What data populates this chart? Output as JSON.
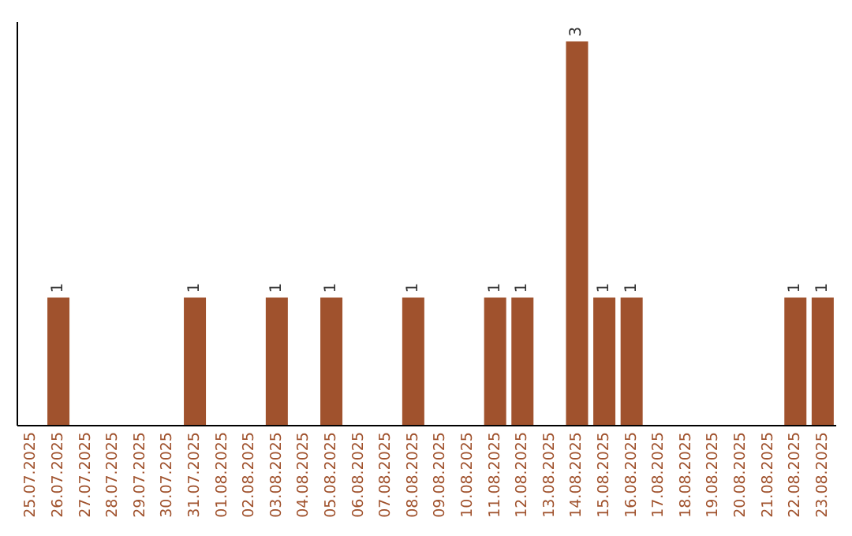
{
  "chart_data": {
    "type": "bar",
    "categories": [
      "25.07.2025",
      "26.07.2025",
      "27.07.2025",
      "28.07.2025",
      "29.07.2025",
      "30.07.2025",
      "31.07.2025",
      "01.08.2025",
      "02.08.2025",
      "03.08.2025",
      "04.08.2025",
      "05.08.2025",
      "06.08.2025",
      "07.08.2025",
      "08.08.2025",
      "09.08.2025",
      "10.08.2025",
      "11.08.2025",
      "12.08.2025",
      "13.08.2025",
      "14.08.2025",
      "15.08.2025",
      "16.08.2025",
      "17.08.2025",
      "18.08.2025",
      "19.08.2025",
      "20.08.2025",
      "21.08.2025",
      "22.08.2025",
      "23.08.2025"
    ],
    "values": [
      0,
      1,
      0,
      0,
      0,
      0,
      1,
      0,
      0,
      1,
      0,
      1,
      0,
      0,
      1,
      0,
      0,
      1,
      1,
      0,
      3,
      1,
      1,
      0,
      0,
      0,
      0,
      0,
      1,
      1
    ],
    "value_labels": [
      null,
      "1",
      null,
      null,
      null,
      null,
      "1",
      null,
      null,
      "1",
      null,
      "1",
      null,
      null,
      "1",
      null,
      null,
      "1",
      "1",
      null,
      "3",
      "1",
      "1",
      null,
      null,
      null,
      null,
      null,
      "1",
      "1"
    ],
    "color": "#a0522d",
    "grid": false,
    "legend": false,
    "tick_labels": "x"
  }
}
